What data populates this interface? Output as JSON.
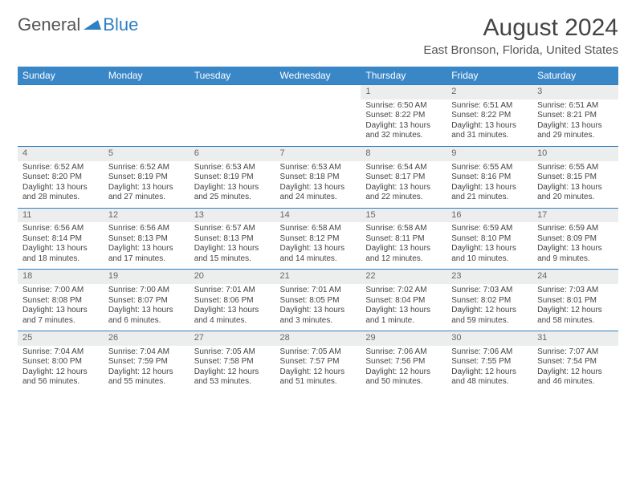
{
  "logo": {
    "text1": "General",
    "text2": "Blue",
    "tri_color": "#2f7fc4"
  },
  "title": "August 2024",
  "location": "East Bronson, Florida, United States",
  "colors": {
    "header_bg": "#3a87c8",
    "header_text": "#ffffff",
    "daynum_bg": "#eceded",
    "border": "#2f7fc4",
    "body_text": "#444444"
  },
  "dayHeaders": [
    "Sunday",
    "Monday",
    "Tuesday",
    "Wednesday",
    "Thursday",
    "Friday",
    "Saturday"
  ],
  "weeks": [
    [
      null,
      null,
      null,
      null,
      {
        "n": "1",
        "sr": "Sunrise: 6:50 AM",
        "ss": "Sunset: 8:22 PM",
        "dl": "Daylight: 13 hours and 32 minutes."
      },
      {
        "n": "2",
        "sr": "Sunrise: 6:51 AM",
        "ss": "Sunset: 8:22 PM",
        "dl": "Daylight: 13 hours and 31 minutes."
      },
      {
        "n": "3",
        "sr": "Sunrise: 6:51 AM",
        "ss": "Sunset: 8:21 PM",
        "dl": "Daylight: 13 hours and 29 minutes."
      }
    ],
    [
      {
        "n": "4",
        "sr": "Sunrise: 6:52 AM",
        "ss": "Sunset: 8:20 PM",
        "dl": "Daylight: 13 hours and 28 minutes."
      },
      {
        "n": "5",
        "sr": "Sunrise: 6:52 AM",
        "ss": "Sunset: 8:19 PM",
        "dl": "Daylight: 13 hours and 27 minutes."
      },
      {
        "n": "6",
        "sr": "Sunrise: 6:53 AM",
        "ss": "Sunset: 8:19 PM",
        "dl": "Daylight: 13 hours and 25 minutes."
      },
      {
        "n": "7",
        "sr": "Sunrise: 6:53 AM",
        "ss": "Sunset: 8:18 PM",
        "dl": "Daylight: 13 hours and 24 minutes."
      },
      {
        "n": "8",
        "sr": "Sunrise: 6:54 AM",
        "ss": "Sunset: 8:17 PM",
        "dl": "Daylight: 13 hours and 22 minutes."
      },
      {
        "n": "9",
        "sr": "Sunrise: 6:55 AM",
        "ss": "Sunset: 8:16 PM",
        "dl": "Daylight: 13 hours and 21 minutes."
      },
      {
        "n": "10",
        "sr": "Sunrise: 6:55 AM",
        "ss": "Sunset: 8:15 PM",
        "dl": "Daylight: 13 hours and 20 minutes."
      }
    ],
    [
      {
        "n": "11",
        "sr": "Sunrise: 6:56 AM",
        "ss": "Sunset: 8:14 PM",
        "dl": "Daylight: 13 hours and 18 minutes."
      },
      {
        "n": "12",
        "sr": "Sunrise: 6:56 AM",
        "ss": "Sunset: 8:13 PM",
        "dl": "Daylight: 13 hours and 17 minutes."
      },
      {
        "n": "13",
        "sr": "Sunrise: 6:57 AM",
        "ss": "Sunset: 8:13 PM",
        "dl": "Daylight: 13 hours and 15 minutes."
      },
      {
        "n": "14",
        "sr": "Sunrise: 6:58 AM",
        "ss": "Sunset: 8:12 PM",
        "dl": "Daylight: 13 hours and 14 minutes."
      },
      {
        "n": "15",
        "sr": "Sunrise: 6:58 AM",
        "ss": "Sunset: 8:11 PM",
        "dl": "Daylight: 13 hours and 12 minutes."
      },
      {
        "n": "16",
        "sr": "Sunrise: 6:59 AM",
        "ss": "Sunset: 8:10 PM",
        "dl": "Daylight: 13 hours and 10 minutes."
      },
      {
        "n": "17",
        "sr": "Sunrise: 6:59 AM",
        "ss": "Sunset: 8:09 PM",
        "dl": "Daylight: 13 hours and 9 minutes."
      }
    ],
    [
      {
        "n": "18",
        "sr": "Sunrise: 7:00 AM",
        "ss": "Sunset: 8:08 PM",
        "dl": "Daylight: 13 hours and 7 minutes."
      },
      {
        "n": "19",
        "sr": "Sunrise: 7:00 AM",
        "ss": "Sunset: 8:07 PM",
        "dl": "Daylight: 13 hours and 6 minutes."
      },
      {
        "n": "20",
        "sr": "Sunrise: 7:01 AM",
        "ss": "Sunset: 8:06 PM",
        "dl": "Daylight: 13 hours and 4 minutes."
      },
      {
        "n": "21",
        "sr": "Sunrise: 7:01 AM",
        "ss": "Sunset: 8:05 PM",
        "dl": "Daylight: 13 hours and 3 minutes."
      },
      {
        "n": "22",
        "sr": "Sunrise: 7:02 AM",
        "ss": "Sunset: 8:04 PM",
        "dl": "Daylight: 13 hours and 1 minute."
      },
      {
        "n": "23",
        "sr": "Sunrise: 7:03 AM",
        "ss": "Sunset: 8:02 PM",
        "dl": "Daylight: 12 hours and 59 minutes."
      },
      {
        "n": "24",
        "sr": "Sunrise: 7:03 AM",
        "ss": "Sunset: 8:01 PM",
        "dl": "Daylight: 12 hours and 58 minutes."
      }
    ],
    [
      {
        "n": "25",
        "sr": "Sunrise: 7:04 AM",
        "ss": "Sunset: 8:00 PM",
        "dl": "Daylight: 12 hours and 56 minutes."
      },
      {
        "n": "26",
        "sr": "Sunrise: 7:04 AM",
        "ss": "Sunset: 7:59 PM",
        "dl": "Daylight: 12 hours and 55 minutes."
      },
      {
        "n": "27",
        "sr": "Sunrise: 7:05 AM",
        "ss": "Sunset: 7:58 PM",
        "dl": "Daylight: 12 hours and 53 minutes."
      },
      {
        "n": "28",
        "sr": "Sunrise: 7:05 AM",
        "ss": "Sunset: 7:57 PM",
        "dl": "Daylight: 12 hours and 51 minutes."
      },
      {
        "n": "29",
        "sr": "Sunrise: 7:06 AM",
        "ss": "Sunset: 7:56 PM",
        "dl": "Daylight: 12 hours and 50 minutes."
      },
      {
        "n": "30",
        "sr": "Sunrise: 7:06 AM",
        "ss": "Sunset: 7:55 PM",
        "dl": "Daylight: 12 hours and 48 minutes."
      },
      {
        "n": "31",
        "sr": "Sunrise: 7:07 AM",
        "ss": "Sunset: 7:54 PM",
        "dl": "Daylight: 12 hours and 46 minutes."
      }
    ]
  ]
}
